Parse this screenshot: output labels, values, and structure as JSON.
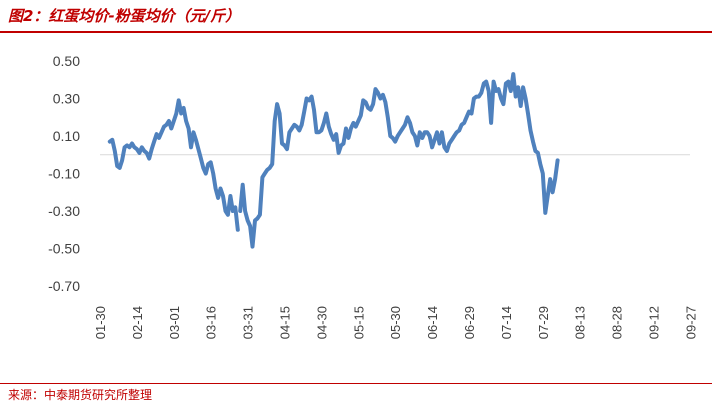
{
  "header": {
    "title": "图2：红蛋均价-粉蛋均价（元/斤）"
  },
  "footer": {
    "source": "来源：中泰期货研究所整理"
  },
  "chart_data": {
    "type": "line",
    "title": "图2：红蛋均价-粉蛋均价（元/斤）",
    "xlabel": "",
    "ylabel": "",
    "ylim": [
      -0.7,
      0.5
    ],
    "yticks": [
      "0.50",
      "0.30",
      "0.10",
      "-0.10",
      "-0.30",
      "-0.50",
      "-0.70"
    ],
    "ytick_values": [
      0.5,
      0.3,
      0.1,
      -0.1,
      -0.3,
      -0.5,
      -0.7
    ],
    "xticks": [
      "01-30",
      "02-14",
      "03-01",
      "03-16",
      "03-31",
      "04-15",
      "04-30",
      "05-15",
      "05-30",
      "06-14",
      "06-29",
      "07-14",
      "07-29",
      "08-13",
      "08-28",
      "09-12",
      "09-27"
    ],
    "x_start_day": 30,
    "series_color": "#4f81bd",
    "grid": false,
    "series": [
      {
        "segments": [
          [
            [
              34,
              0.07
            ],
            [
              35,
              0.08
            ],
            [
              36,
              0.02
            ],
            [
              37,
              -0.06
            ],
            [
              38,
              -0.07
            ],
            [
              39,
              -0.03
            ],
            [
              40,
              0.04
            ],
            [
              41,
              0.05
            ],
            [
              42,
              0.04
            ],
            [
              43,
              0.06
            ],
            [
              44,
              0.04
            ],
            [
              45,
              0.03
            ],
            [
              46,
              0.01
            ],
            [
              47,
              0.04
            ],
            [
              48,
              0.02
            ],
            [
              49,
              0.01
            ],
            [
              50,
              -0.02
            ],
            [
              51,
              0.03
            ],
            [
              52,
              0.07
            ],
            [
              53,
              0.11
            ],
            [
              54,
              0.09
            ],
            [
              55,
              0.12
            ],
            [
              56,
              0.15
            ],
            [
              57,
              0.16
            ],
            [
              58,
              0.18
            ],
            [
              59,
              0.14
            ],
            [
              60,
              0.18
            ],
            [
              61,
              0.22
            ],
            [
              62,
              0.29
            ],
            [
              63,
              0.22
            ],
            [
              64,
              0.25
            ],
            [
              65,
              0.18
            ],
            [
              66,
              0.14
            ],
            [
              67,
              0.04
            ],
            [
              68,
              0.12
            ],
            [
              69,
              0.08
            ],
            [
              70,
              0.03
            ],
            [
              71,
              -0.02
            ],
            [
              72,
              -0.07
            ],
            [
              73,
              -0.1
            ],
            [
              74,
              -0.05
            ],
            [
              75,
              -0.04
            ],
            [
              76,
              -0.1
            ],
            [
              77,
              -0.18
            ],
            [
              78,
              -0.23
            ],
            [
              79,
              -0.18
            ],
            [
              80,
              -0.22
            ],
            [
              81,
              -0.3
            ],
            [
              82,
              -0.32
            ],
            [
              83,
              -0.22
            ],
            [
              84,
              -0.3
            ],
            [
              85,
              -0.28
            ],
            [
              86,
              -0.4
            ]
          ],
          [
            [
              87,
              -0.3
            ],
            [
              88,
              -0.16
            ],
            [
              89,
              -0.3
            ],
            [
              90,
              -0.35
            ],
            [
              91,
              -0.38
            ],
            [
              92,
              -0.49
            ],
            [
              93,
              -0.35
            ],
            [
              94,
              -0.34
            ],
            [
              95,
              -0.32
            ],
            [
              96,
              -0.12
            ],
            [
              97,
              -0.1
            ],
            [
              98,
              -0.08
            ],
            [
              99,
              -0.07
            ],
            [
              100,
              -0.05
            ],
            [
              101,
              0.18
            ],
            [
              102,
              0.27
            ],
            [
              103,
              0.22
            ],
            [
              104,
              0.06
            ],
            [
              105,
              0.05
            ],
            [
              106,
              0.03
            ],
            [
              107,
              0.12
            ],
            [
              108,
              0.14
            ],
            [
              109,
              0.16
            ],
            [
              110,
              0.15
            ],
            [
              111,
              0.13
            ],
            [
              112,
              0.16
            ],
            [
              113,
              0.23
            ],
            [
              114,
              0.3
            ],
            [
              115,
              0.29
            ],
            [
              116,
              0.31
            ],
            [
              117,
              0.24
            ],
            [
              118,
              0.12
            ],
            [
              119,
              0.12
            ],
            [
              120,
              0.13
            ],
            [
              121,
              0.17
            ],
            [
              122,
              0.22
            ],
            [
              123,
              0.15
            ],
            [
              124,
              0.11
            ],
            [
              125,
              0.08
            ],
            [
              126,
              0.11
            ],
            [
              127,
              0.01
            ],
            [
              128,
              0.05
            ],
            [
              129,
              0.06
            ],
            [
              130,
              0.14
            ],
            [
              131,
              0.09
            ],
            [
              132,
              0.14
            ],
            [
              133,
              0.17
            ],
            [
              134,
              0.15
            ],
            [
              135,
              0.18
            ],
            [
              136,
              0.21
            ],
            [
              137,
              0.29
            ],
            [
              138,
              0.28
            ],
            [
              139,
              0.25
            ],
            [
              140,
              0.24
            ],
            [
              141,
              0.27
            ],
            [
              142,
              0.35
            ],
            [
              143,
              0.33
            ],
            [
              144,
              0.3
            ],
            [
              145,
              0.32
            ],
            [
              146,
              0.28
            ],
            [
              147,
              0.2
            ],
            [
              148,
              0.1
            ],
            [
              149,
              0.09
            ],
            [
              150,
              0.07
            ],
            [
              151,
              0.1
            ],
            [
              152,
              0.12
            ],
            [
              153,
              0.14
            ],
            [
              154,
              0.16
            ],
            [
              155,
              0.2
            ],
            [
              156,
              0.17
            ],
            [
              157,
              0.12
            ],
            [
              158,
              0.1
            ],
            [
              159,
              0.05
            ],
            [
              160,
              0.12
            ],
            [
              161,
              0.09
            ],
            [
              162,
              0.12
            ],
            [
              163,
              0.12
            ],
            [
              164,
              0.1
            ],
            [
              165,
              0.04
            ],
            [
              166,
              0.08
            ],
            [
              167,
              0.12
            ],
            [
              168,
              0.06
            ],
            [
              169,
              0.12
            ],
            [
              170,
              0.04
            ],
            [
              171,
              0.02
            ],
            [
              172,
              0.06
            ],
            [
              173,
              0.08
            ],
            [
              174,
              0.1
            ],
            [
              175,
              0.12
            ],
            [
              176,
              0.13
            ],
            [
              177,
              0.16
            ],
            [
              178,
              0.17
            ],
            [
              179,
              0.2
            ],
            [
              180,
              0.23
            ],
            [
              181,
              0.22
            ],
            [
              182,
              0.3
            ],
            [
              183,
              0.31
            ],
            [
              184,
              0.31
            ],
            [
              185,
              0.33
            ],
            [
              186,
              0.38
            ],
            [
              187,
              0.39
            ],
            [
              188,
              0.34
            ],
            [
              189,
              0.17
            ],
            [
              190,
              0.39
            ],
            [
              191,
              0.34
            ],
            [
              192,
              0.35
            ],
            [
              193,
              0.3
            ],
            [
              194,
              0.27
            ],
            [
              195,
              0.38
            ],
            [
              196,
              0.39
            ],
            [
              197,
              0.34
            ],
            [
              198,
              0.43
            ],
            [
              199,
              0.31
            ],
            [
              200,
              0.36
            ],
            [
              201,
              0.26
            ],
            [
              202,
              0.36
            ],
            [
              203,
              0.3
            ],
            [
              204,
              0.22
            ],
            [
              205,
              0.13
            ],
            [
              206,
              0.07
            ],
            [
              207,
              0.02
            ],
            [
              208,
              0.01
            ],
            [
              209,
              -0.05
            ],
            [
              210,
              -0.1
            ],
            [
              211,
              -0.31
            ],
            [
              212,
              -0.22
            ],
            [
              213,
              -0.13
            ],
            [
              214,
              -0.2
            ],
            [
              215,
              -0.13
            ],
            [
              216,
              -0.03
            ]
          ]
        ]
      }
    ]
  }
}
